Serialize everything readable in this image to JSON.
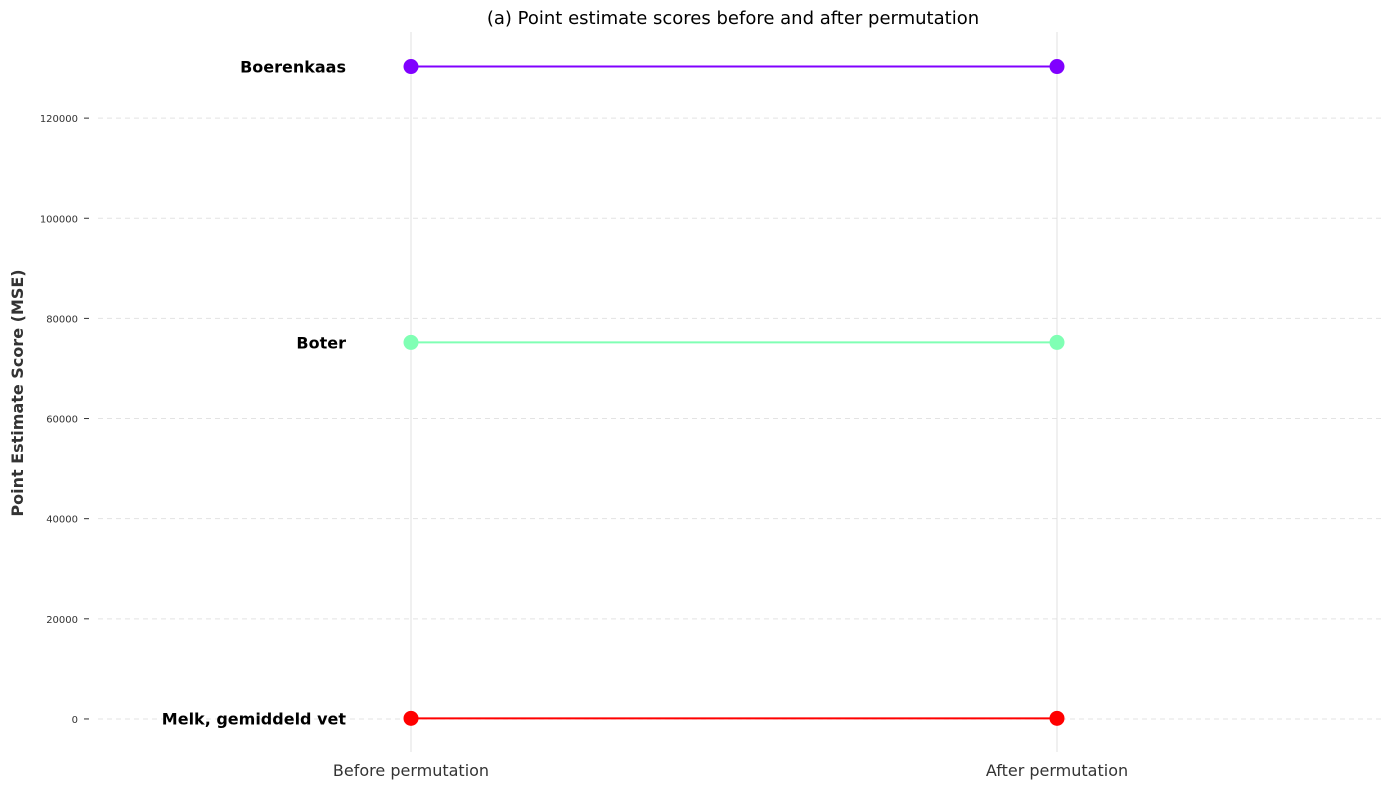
{
  "chart_data": {
    "type": "line",
    "title": "(a) Point estimate scores before and after permutation",
    "ylabel": "Point Estimate Score (MSE)",
    "xlabel": "",
    "categories": [
      "Before permutation",
      "After permutation"
    ],
    "ylim": [
      -6600,
      137200
    ],
    "yticks": [
      0,
      20000,
      40000,
      60000,
      80000,
      100000,
      120000
    ],
    "grid": "horizontal dashed",
    "series": [
      {
        "name": "Boerenkaas",
        "values": [
          130300,
          130300
        ],
        "color": "#8000ff"
      },
      {
        "name": "Boter",
        "values": [
          75200,
          75200
        ],
        "color": "#80ffb4"
      },
      {
        "name": "Melk, gemiddeld vet",
        "values": [
          120,
          120
        ],
        "color": "#ff0000"
      }
    ]
  }
}
